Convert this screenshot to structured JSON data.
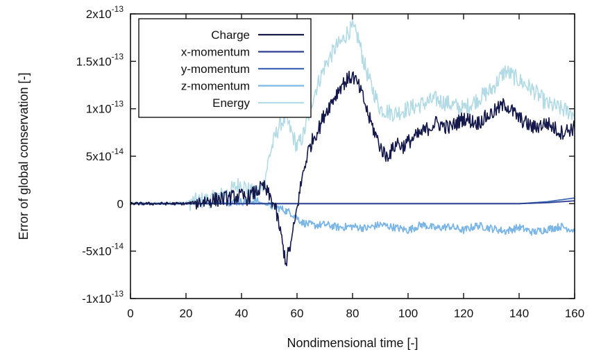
{
  "chart_data": {
    "type": "line",
    "xlabel": "Nondimensional time [-]",
    "ylabel": "Error of global conservation [-]",
    "xlim": [
      0,
      160
    ],
    "ylim": [
      -1e-13,
      2e-13
    ],
    "x_ticks": [
      {
        "value": 0,
        "label": "0"
      },
      {
        "value": 20,
        "label": "20"
      },
      {
        "value": 40,
        "label": "40"
      },
      {
        "value": 60,
        "label": "60"
      },
      {
        "value": 80,
        "label": "80"
      },
      {
        "value": 100,
        "label": "100"
      },
      {
        "value": 120,
        "label": "120"
      },
      {
        "value": 140,
        "label": "140"
      },
      {
        "value": 160,
        "label": "160"
      }
    ],
    "y_ticks": [
      {
        "value": -1e-13,
        "mantissa": "-1x10",
        "exp": "-13"
      },
      {
        "value": -5e-14,
        "mantissa": "-5x10",
        "exp": "-14"
      },
      {
        "value": 0,
        "mantissa": "0",
        "exp": ""
      },
      {
        "value": 5e-14,
        "mantissa": "5x10",
        "exp": "-14"
      },
      {
        "value": 1e-13,
        "mantissa": "1x10",
        "exp": "-13"
      },
      {
        "value": 1.5e-13,
        "mantissa": "1.5x10",
        "exp": "-13"
      },
      {
        "value": 2e-13,
        "mantissa": "2x10",
        "exp": "-13"
      }
    ],
    "grid": false,
    "legend_position": "top-left",
    "series": [
      {
        "name": "Charge",
        "color": "#14184a",
        "x": [
          0,
          10,
          20,
          25,
          30,
          35,
          40,
          42,
          45,
          48,
          50,
          52,
          54,
          56,
          58,
          60,
          62,
          64,
          66,
          68,
          70,
          72,
          74,
          76,
          78,
          80,
          82,
          84,
          86,
          88,
          90,
          92,
          94,
          96,
          98,
          100,
          105,
          110,
          115,
          120,
          125,
          130,
          135,
          140,
          145,
          150,
          155,
          160
        ],
        "y": [
          0,
          0,
          0,
          2e-15,
          4e-15,
          6e-15,
          8e-15,
          6e-15,
          1.2e-14,
          1.8e-14,
          8e-15,
          -2e-15,
          -3e-14,
          -6.2e-14,
          -4e-14,
          -5e-15,
          3e-14,
          5.5e-14,
          7e-14,
          8e-14,
          9.5e-14,
          1.05e-13,
          1.15e-13,
          1.25e-13,
          1.3e-13,
          1.35e-13,
          1.25e-13,
          1.1e-13,
          9e-14,
          7.5e-14,
          6e-14,
          5e-14,
          5.5e-14,
          6.5e-14,
          6e-14,
          6.5e-14,
          7.5e-14,
          8.5e-14,
          8e-14,
          9e-14,
          8.5e-14,
          9.5e-14,
          1.05e-13,
          9e-14,
          8e-14,
          8.5e-14,
          7.5e-14,
          8e-14
        ],
        "noise": 8e-15
      },
      {
        "name": "x-momentum",
        "color": "#2a3f8f",
        "x": [
          0,
          40,
          60,
          80,
          100,
          120,
          140,
          150,
          160
        ],
        "y": [
          0,
          0,
          0,
          0,
          0,
          0,
          0,
          1e-15,
          3e-15
        ],
        "noise": 0
      },
      {
        "name": "y-momentum",
        "color": "#3d66b8",
        "x": [
          0,
          40,
          60,
          80,
          100,
          120,
          140,
          150,
          160
        ],
        "y": [
          0,
          0,
          0,
          0,
          0,
          0,
          0,
          2e-15,
          6e-15
        ],
        "noise": 0
      },
      {
        "name": "z-momentum",
        "color": "#7cb6e6",
        "x": [
          0,
          20,
          30,
          40,
          45,
          50,
          54,
          58,
          62,
          66,
          70,
          75,
          80,
          85,
          90,
          95,
          100,
          105,
          110,
          115,
          120,
          125,
          130,
          135,
          140,
          145,
          150,
          155,
          160
        ],
        "y": [
          0,
          0,
          1e-15,
          2e-15,
          3e-15,
          -2e-15,
          -5e-15,
          -1e-14,
          -2e-14,
          -2.3e-14,
          -2.2e-14,
          -2.5e-14,
          -2.4e-14,
          -2.6e-14,
          -2.2e-14,
          -2.5e-14,
          -2.8e-14,
          -2.2e-14,
          -2.6e-14,
          -2.4e-14,
          -2.8e-14,
          -2.3e-14,
          -2.6e-14,
          -2.9e-14,
          -2.5e-14,
          -3e-14,
          -2.7e-14,
          -2.4e-14,
          -2.8e-14
        ],
        "noise": 4e-15
      },
      {
        "name": "Energy",
        "color": "#b3dbe6",
        "x": [
          0,
          10,
          20,
          30,
          35,
          38,
          40,
          42,
          45,
          48,
          50,
          52,
          54,
          56,
          58,
          60,
          62,
          64,
          66,
          68,
          70,
          72,
          74,
          76,
          78,
          80,
          82,
          84,
          86,
          88,
          90,
          95,
          100,
          105,
          110,
          115,
          120,
          125,
          130,
          135,
          140,
          145,
          150,
          155,
          160
        ],
        "y": [
          0,
          0,
          1e-15,
          5e-15,
          1.2e-14,
          1.8e-14,
          2.2e-14,
          1.5e-14,
          1e-14,
          2e-14,
          5e-14,
          7e-14,
          8.5e-14,
          9e-14,
          7.5e-14,
          6e-14,
          7e-14,
          9e-14,
          1.15e-13,
          1.3e-13,
          1.45e-13,
          1.55e-13,
          1.65e-13,
          1.7e-13,
          1.8e-13,
          1.85e-13,
          1.75e-13,
          1.5e-13,
          1.3e-13,
          1.15e-13,
          1e-13,
          9.5e-14,
          1e-13,
          1.05e-13,
          1.1e-13,
          1.05e-13,
          1e-13,
          1.1e-13,
          1.2e-13,
          1.4e-13,
          1.3e-13,
          1.2e-13,
          1.05e-13,
          1e-13,
          9.5e-14
        ],
        "noise": 9e-15
      }
    ],
    "draw_order": [
      "Energy",
      "z-momentum",
      "y-momentum",
      "x-momentum",
      "Charge"
    ]
  }
}
